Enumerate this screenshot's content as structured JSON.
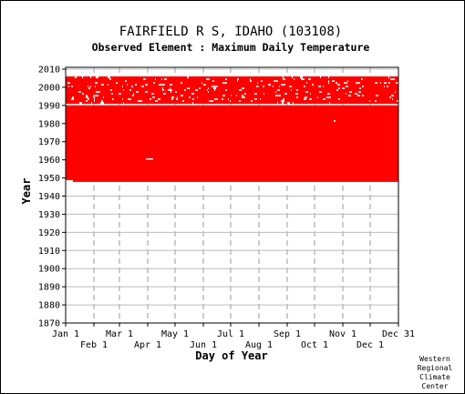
{
  "chart_data": {
    "type": "heatmap",
    "title": "FAIRFIELD R S, IDAHO   (103108)",
    "subtitle": "Observed Element : Maximum Daily Temperature",
    "xlabel": "Day of Year",
    "ylabel": "Year",
    "x_ticks_upper": [
      "Jan 1",
      "Mar 1",
      "May 1",
      "Jul 1",
      "Sep 1",
      "Nov 1",
      "Dec 31"
    ],
    "x_ticks_lower": [
      "Feb 1",
      "Apr 1",
      "Jun 1",
      "Aug 1",
      "Oct 1",
      "Dec 1"
    ],
    "y_ticks": [
      2010,
      2000,
      1990,
      1980,
      1970,
      1960,
      1950,
      1940,
      1930,
      1920,
      1910,
      1900,
      1890,
      1880,
      1870
    ],
    "ylim": [
      1870,
      2011
    ],
    "xlim": [
      1,
      366
    ],
    "grid": true,
    "data_color": "#ff0000",
    "coverage": {
      "dense_years": [
        1948,
        1989
      ],
      "sparse_years": [
        1990,
        2005
      ],
      "missing_year": 1990
    },
    "credit": [
      "Western",
      "Regional",
      "Climate",
      "Center"
    ]
  }
}
